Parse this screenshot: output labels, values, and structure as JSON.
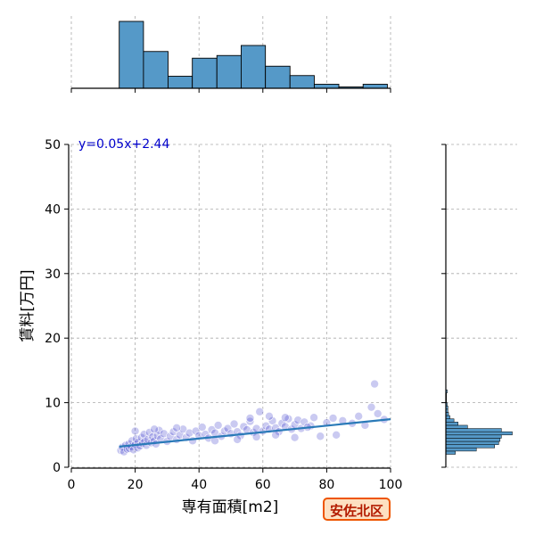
{
  "chart_data": {
    "type": "scatter",
    "xlabel": "専有面積[m2]",
    "ylabel": "賃料[万円]",
    "xlim": [
      0,
      100
    ],
    "ylim": [
      0,
      50
    ],
    "x_ticks": [
      "0",
      "20",
      "40",
      "60",
      "80",
      "100"
    ],
    "y_ticks": [
      "0",
      "10",
      "20",
      "30",
      "40",
      "50"
    ],
    "grid": true,
    "regression": {
      "label": "y=0.05x+2.44",
      "slope": 0.05,
      "intercept": 2.44,
      "x_range": [
        15,
        100
      ]
    },
    "top_histogram": {
      "bin_edges": [
        15,
        22.6,
        30.3,
        37.9,
        45.6,
        53.2,
        60.8,
        68.5,
        76.1,
        83.8,
        91.4,
        99
      ],
      "relative_heights": [
        1.0,
        0.55,
        0.18,
        0.45,
        0.49,
        0.64,
        0.33,
        0.19,
        0.06,
        0.02,
        0.06
      ]
    },
    "right_histogram": {
      "bin_edges": [
        2.0,
        2.5,
        3.0,
        3.5,
        4.0,
        4.5,
        5.0,
        5.5,
        6.0,
        6.5,
        7.0,
        7.5,
        8.0,
        8.5,
        9.0,
        9.5,
        10.0,
        10.5,
        11.0,
        11.5,
        12.0
      ],
      "relative_heights": [
        0.14,
        0.45,
        0.72,
        0.78,
        0.8,
        0.82,
        0.98,
        0.82,
        0.32,
        0.18,
        0.12,
        0.06,
        0.04,
        0.03,
        0.03,
        0.02,
        0.01,
        0.01,
        0.01,
        0.02
      ]
    },
    "points": [
      [
        15.5,
        2.6
      ],
      [
        16,
        3.1
      ],
      [
        16.5,
        2.4
      ],
      [
        17,
        3.4
      ],
      [
        17.5,
        2.8
      ],
      [
        18,
        3.6
      ],
      [
        18.2,
        2.9
      ],
      [
        18.8,
        3.2
      ],
      [
        19,
        4.1
      ],
      [
        19.5,
        2.7
      ],
      [
        20,
        3.5
      ],
      [
        20.3,
        4.4
      ],
      [
        20.8,
        3.0
      ],
      [
        21,
        3.9
      ],
      [
        21.5,
        3.3
      ],
      [
        22,
        4.6
      ],
      [
        22.3,
        3.7
      ],
      [
        22.8,
        5.1
      ],
      [
        23,
        4.0
      ],
      [
        23.5,
        3.4
      ],
      [
        24,
        4.3
      ],
      [
        24.5,
        5.4
      ],
      [
        25,
        3.8
      ],
      [
        25.5,
        4.7
      ],
      [
        26,
        4.1
      ],
      [
        26.5,
        3.6
      ],
      [
        27,
        4.9
      ],
      [
        27.5,
        5.7
      ],
      [
        28,
        4.4
      ],
      [
        29,
        5.2
      ],
      [
        30,
        4.0
      ],
      [
        31,
        4.8
      ],
      [
        32,
        5.5
      ],
      [
        33,
        4.3
      ],
      [
        34,
        5.0
      ],
      [
        35,
        5.9
      ],
      [
        36,
        4.6
      ],
      [
        37,
        5.3
      ],
      [
        38,
        4.1
      ],
      [
        39,
        5.6
      ],
      [
        40,
        4.9
      ],
      [
        41,
        6.2
      ],
      [
        42,
        5.1
      ],
      [
        43,
        4.5
      ],
      [
        44,
        5.8
      ],
      [
        45,
        5.3
      ],
      [
        46,
        6.5
      ],
      [
        47,
        4.8
      ],
      [
        48,
        5.6
      ],
      [
        49,
        6.0
      ],
      [
        50,
        5.2
      ],
      [
        51,
        6.7
      ],
      [
        52,
        5.5
      ],
      [
        53,
        4.9
      ],
      [
        54,
        6.3
      ],
      [
        55,
        5.8
      ],
      [
        56,
        7.1
      ],
      [
        57,
        5.4
      ],
      [
        58,
        6.0
      ],
      [
        59,
        8.6
      ],
      [
        60,
        5.6
      ],
      [
        61,
        6.4
      ],
      [
        62,
        5.9
      ],
      [
        63,
        7.2
      ],
      [
        64,
        6.1
      ],
      [
        65,
        5.5
      ],
      [
        66,
        6.8
      ],
      [
        67,
        6.3
      ],
      [
        68,
        7.5
      ],
      [
        69,
        5.9
      ],
      [
        70,
        6.6
      ],
      [
        71,
        7.3
      ],
      [
        72,
        6.0
      ],
      [
        73,
        7.0
      ],
      [
        75,
        6.4
      ],
      [
        76,
        7.7
      ],
      [
        78,
        4.8
      ],
      [
        80,
        6.9
      ],
      [
        82,
        7.6
      ],
      [
        83,
        5.0
      ],
      [
        85,
        7.2
      ],
      [
        88,
        6.8
      ],
      [
        90,
        7.9
      ],
      [
        92,
        6.5
      ],
      [
        94,
        9.3
      ],
      [
        95,
        12.9
      ],
      [
        96,
        8.3
      ],
      [
        98,
        7.4
      ],
      [
        20,
        5.6
      ],
      [
        26,
        5.9
      ],
      [
        33,
        6.1
      ],
      [
        45,
        4.1
      ],
      [
        52,
        4.3
      ],
      [
        58,
        4.7
      ],
      [
        64,
        5.0
      ],
      [
        70,
        4.6
      ],
      [
        56,
        7.6
      ],
      [
        62,
        7.9
      ],
      [
        67,
        7.7
      ],
      [
        74,
        6.2
      ]
    ]
  },
  "badge": {
    "label": "安佐北区"
  },
  "colors": {
    "hist": "#5599c8",
    "points": "#4040cc",
    "line": "#2a7ab8",
    "badge_bg": "#fde0c2",
    "badge_border": "#ee5500",
    "badge_text": "#b31b00"
  }
}
